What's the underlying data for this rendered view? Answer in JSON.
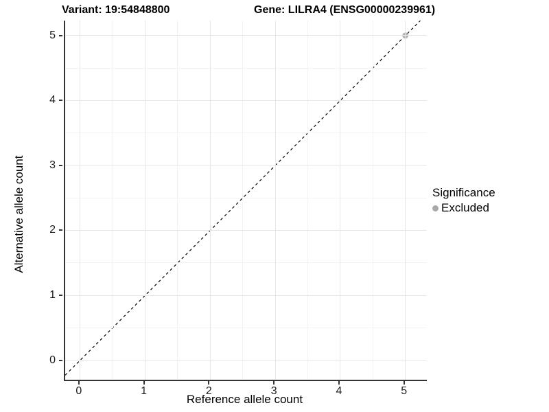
{
  "header": {
    "variant_title": "Variant: 19:54848800",
    "gene_title": "Gene: LILRA4 (ENSG00000239961)"
  },
  "legend": {
    "title": "Significance",
    "items": [
      {
        "label": "Excluded",
        "color": "#a9a9a9"
      }
    ]
  },
  "chart_data": {
    "type": "scatter",
    "title": "Variant: 19:54848800   Gene: LILRA4 (ENSG00000239961)",
    "xlabel": "Reference allele count",
    "ylabel": "Alternative allele count",
    "xlim": [
      -0.23,
      5.33
    ],
    "ylim": [
      -0.3,
      5.23
    ],
    "x_ticks": [
      0,
      1,
      2,
      3,
      4,
      5
    ],
    "y_ticks": [
      0,
      1,
      2,
      3,
      4,
      5
    ],
    "x_minor_ticks": [
      0.5,
      1.5,
      2.5,
      3.5,
      4.5
    ],
    "y_minor_ticks": [
      0.5,
      1.5,
      2.5,
      3.5,
      4.5
    ],
    "grid": true,
    "legend_position": "right",
    "series": [
      {
        "name": "Excluded",
        "color": "#b5b5b5",
        "points": [
          {
            "x": 5,
            "y": 5
          }
        ]
      }
    ],
    "reference_line": {
      "kind": "identity",
      "equation": "y = x",
      "style": "dashed",
      "color": "#000000"
    },
    "colors": {
      "background": "#ffffff",
      "grid_major": "#e6e6e6",
      "grid_minor": "#f3f3f3",
      "axis_line": "#333333",
      "tick_text": "#1a1a1a"
    }
  }
}
